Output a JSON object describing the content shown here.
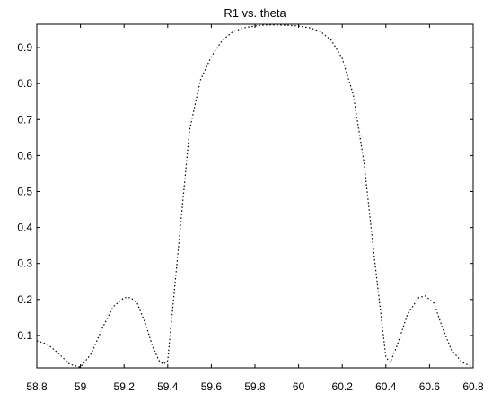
{
  "chart_data": {
    "type": "line",
    "title": "R1 vs. theta",
    "xlabel": "",
    "ylabel": "",
    "xlim": [
      58.8,
      60.8
    ],
    "ylim": [
      0.01,
      0.965
    ],
    "grid": false,
    "x_ticks": [
      "58.8",
      "59",
      "59.2",
      "59.4",
      "59.6",
      "59.8",
      "60",
      "60.2",
      "60.4",
      "60.6",
      "60.8"
    ],
    "y_ticks": [
      "0.1",
      "0.2",
      "0.3",
      "0.4",
      "0.5",
      "0.6",
      "0.7",
      "0.8",
      "0.9"
    ],
    "series": [
      {
        "color": "#000000",
        "line_style": "dotted-dashed",
        "x": [
          58.8,
          58.85,
          58.9,
          58.95,
          59.0,
          59.05,
          59.1,
          59.15,
          59.2,
          59.23,
          59.26,
          59.3,
          59.33,
          59.36,
          59.38,
          59.4,
          59.45,
          59.5,
          59.55,
          59.6,
          59.65,
          59.7,
          59.75,
          59.8,
          59.85,
          59.9,
          59.95,
          60.0,
          60.05,
          60.1,
          60.15,
          60.2,
          60.25,
          60.3,
          60.35,
          60.4,
          60.42,
          60.45,
          60.5,
          60.55,
          60.58,
          60.62,
          60.66,
          60.7,
          60.75,
          60.8
        ],
        "y": [
          0.085,
          0.075,
          0.05,
          0.02,
          0.012,
          0.05,
          0.12,
          0.18,
          0.205,
          0.205,
          0.19,
          0.13,
          0.07,
          0.03,
          0.02,
          0.03,
          0.35,
          0.67,
          0.81,
          0.875,
          0.92,
          0.945,
          0.955,
          0.96,
          0.963,
          0.963,
          0.962,
          0.96,
          0.955,
          0.945,
          0.92,
          0.87,
          0.77,
          0.58,
          0.3,
          0.04,
          0.025,
          0.07,
          0.16,
          0.205,
          0.21,
          0.19,
          0.12,
          0.06,
          0.025,
          0.012
        ]
      }
    ]
  }
}
